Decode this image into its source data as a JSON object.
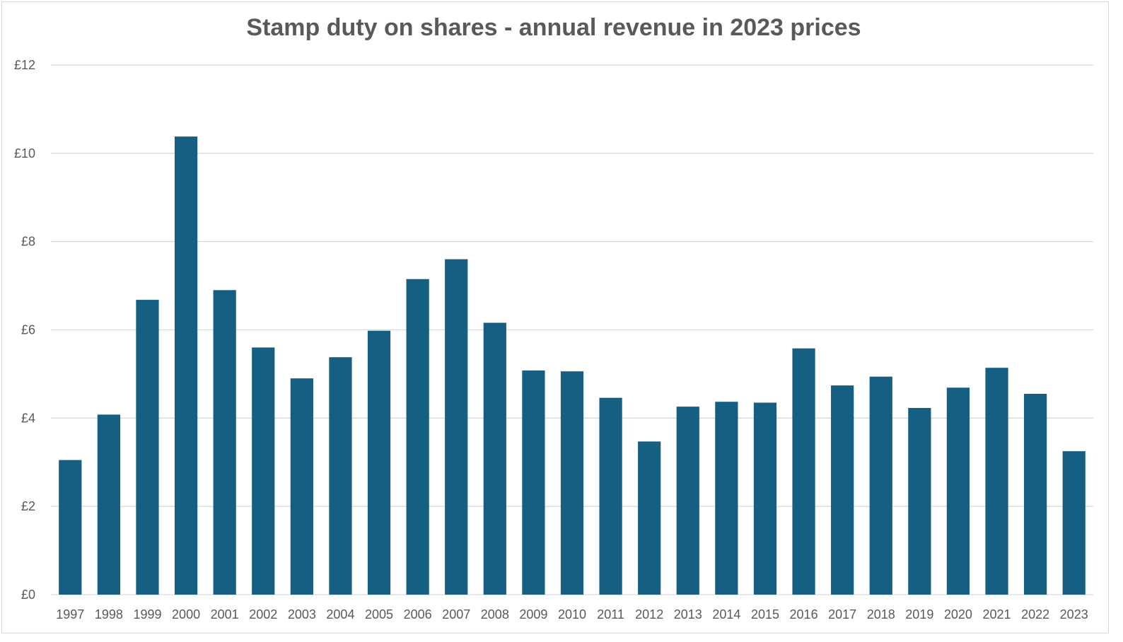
{
  "chart_data": {
    "type": "bar",
    "title": "Stamp duty on shares - annual revenue in 2023 prices",
    "xlabel": "",
    "ylabel": "",
    "categories": [
      "1997",
      "1998",
      "1999",
      "2000",
      "2001",
      "2002",
      "2003",
      "2004",
      "2005",
      "2006",
      "2007",
      "2008",
      "2009",
      "2010",
      "2011",
      "2012",
      "2013",
      "2014",
      "2015",
      "2016",
      "2017",
      "2018",
      "2019",
      "2020",
      "2021",
      "2022",
      "2023"
    ],
    "values": [
      3.05,
      4.08,
      6.68,
      10.38,
      6.9,
      5.6,
      4.9,
      5.38,
      5.98,
      7.15,
      7.6,
      6.16,
      5.08,
      5.06,
      4.46,
      3.47,
      4.26,
      4.37,
      4.35,
      5.58,
      4.74,
      4.94,
      4.23,
      4.69,
      5.14,
      4.55,
      3.25
    ],
    "ylim": [
      0,
      12
    ],
    "y_ticks": [
      0,
      2,
      4,
      6,
      8,
      10,
      12
    ],
    "y_tick_labels": [
      "£0",
      "£2",
      "£4",
      "£6",
      "£8",
      "£10",
      "£12"
    ],
    "grid": true,
    "legend": "none",
    "bar_color": "#155f82",
    "gridline_color": "#d9d9d9",
    "text_color": "#595959"
  }
}
